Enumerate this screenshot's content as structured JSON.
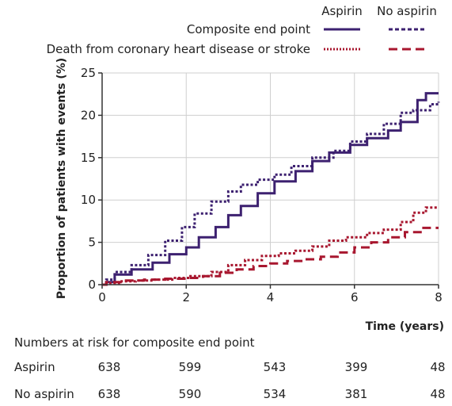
{
  "chart_data": {
    "type": "line",
    "xlabel": "Time (years)",
    "ylabel": "Proportion of patients with events (%)",
    "xlim": [
      0,
      8
    ],
    "ylim": [
      0,
      25
    ],
    "x_ticks": [
      0,
      2,
      4,
      6,
      8
    ],
    "y_ticks": [
      0,
      5,
      10,
      15,
      20,
      25
    ],
    "grid": true,
    "legend": {
      "position": "top",
      "column_headers": [
        "Aspirin",
        "No aspirin"
      ],
      "rows": [
        "Composite end point",
        "Death from coronary heart disease or stroke"
      ]
    },
    "series": [
      {
        "group": "Aspirin",
        "endpoint": "Composite end point",
        "color": "#3d2170",
        "dash": "solid",
        "x": [
          0,
          0.1,
          0.3,
          0.7,
          1.2,
          1.6,
          2.0,
          2.3,
          2.7,
          3.0,
          3.3,
          3.7,
          4.1,
          4.6,
          5.0,
          5.4,
          5.9,
          6.3,
          6.8,
          7.1,
          7.5,
          7.7,
          8.0
        ],
        "y": [
          0,
          0.3,
          1.2,
          1.8,
          2.6,
          3.6,
          4.4,
          5.6,
          6.8,
          8.2,
          9.3,
          10.8,
          12.2,
          13.4,
          14.6,
          15.6,
          16.5,
          17.3,
          18.2,
          19.2,
          21.8,
          22.6,
          22.6
        ]
      },
      {
        "group": "No aspirin",
        "endpoint": "Composite end point",
        "color": "#3d2170",
        "dash": "dotted",
        "x": [
          0,
          0.1,
          0.3,
          0.7,
          1.1,
          1.5,
          1.9,
          2.2,
          2.6,
          3.0,
          3.3,
          3.7,
          4.1,
          4.5,
          5.0,
          5.5,
          5.9,
          6.3,
          6.7,
          7.1,
          7.4,
          7.8,
          8.0
        ],
        "y": [
          0,
          0.6,
          1.5,
          2.3,
          3.5,
          5.2,
          6.8,
          8.4,
          9.8,
          11.0,
          11.8,
          12.4,
          13.0,
          14.0,
          15.0,
          15.8,
          16.9,
          17.8,
          19.0,
          20.3,
          20.6,
          21.3,
          21.6
        ]
      },
      {
        "group": "Aspirin",
        "endpoint": "Death from coronary heart disease or stroke",
        "color": "#a8172f",
        "dash": "dotted",
        "x": [
          0,
          0.1,
          0.4,
          0.8,
          1.2,
          1.7,
          2.1,
          2.6,
          3.0,
          3.4,
          3.8,
          4.2,
          4.6,
          5.0,
          5.4,
          5.8,
          6.3,
          6.7,
          7.1,
          7.4,
          7.7,
          8.0
        ],
        "y": [
          0,
          0.2,
          0.4,
          0.5,
          0.6,
          0.8,
          1.0,
          1.5,
          2.3,
          2.9,
          3.4,
          3.7,
          4.0,
          4.5,
          5.2,
          5.6,
          6.1,
          6.5,
          7.4,
          8.5,
          9.1,
          9.1
        ]
      },
      {
        "group": "No aspirin",
        "endpoint": "Death from coronary heart disease or stroke",
        "color": "#a8172f",
        "dash": "dashed",
        "x": [
          0,
          0.1,
          0.5,
          1.0,
          1.5,
          2.0,
          2.4,
          2.8,
          3.2,
          3.6,
          4.0,
          4.4,
          4.8,
          5.2,
          5.6,
          6.0,
          6.4,
          6.8,
          7.2,
          7.6,
          8.0
        ],
        "y": [
          0,
          0.3,
          0.5,
          0.6,
          0.7,
          0.8,
          1.0,
          1.4,
          1.8,
          2.2,
          2.5,
          2.8,
          3.0,
          3.3,
          3.8,
          4.4,
          5.0,
          5.6,
          6.2,
          6.7,
          6.7
        ]
      }
    ]
  },
  "risk_table": {
    "title": "Numbers at risk for composite end point",
    "timepoints": [
      0,
      2,
      4,
      6,
      8
    ],
    "rows": [
      {
        "label": "Aspirin",
        "values": [
          "638",
          "599",
          "543",
          "399",
          "48"
        ]
      },
      {
        "label": "No aspirin",
        "values": [
          "638",
          "590",
          "534",
          "381",
          "48"
        ]
      }
    ]
  }
}
